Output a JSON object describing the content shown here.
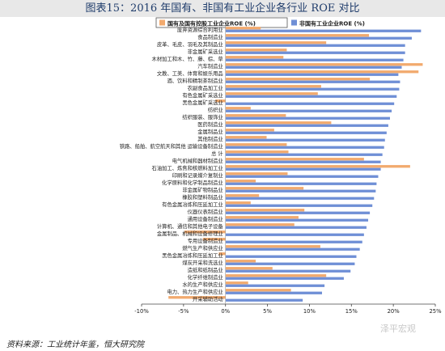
{
  "figure_title": "图表15：2016 年国有、非国有工业企业各行业 ROE 对比",
  "source": "资料来源：工业统计年鉴，恒大研究院",
  "watermark": "泽平宏观",
  "colors": {
    "state": "#f2aa6e",
    "nonstate": "#6f8fd6",
    "text": "#222222",
    "title_bg": "#e8e8e8"
  },
  "chart_data": {
    "type": "bar",
    "orientation": "horizontal",
    "title": "",
    "xlabel": "",
    "ylabel": "",
    "xlim": [
      -10,
      25
    ],
    "x_ticks": [
      "-10%",
      "-5%",
      "0%",
      "5%",
      "10%",
      "15%",
      "20%",
      "25%"
    ],
    "legend_position": "top",
    "categories": [
      "废弃资源综合利用业",
      "食品制造业",
      "皮革、毛皮、羽毛及其制品业",
      "非金属矿采选业",
      "木材加工和木、竹、藤、棕、草",
      "汽车制造业",
      "文教、工美、体育和娱乐用品",
      "酒、饮料和精制茶制造业",
      "农副食品加工业",
      "有色金属矿采选业",
      "黑色金属矿采选业",
      "纺织业",
      "纺织服装、服饰业",
      "医药制造业",
      "金属制品业",
      "其他制造业",
      "铁路、船舶、航空航天和其他 运输设备制造业",
      "总 计",
      "电气机械和器材制造业",
      "石油加工、炼焦和核燃料加工业",
      "印刷和记录媒介复制业",
      "化学原料和化学制品制造业",
      "非金属矿物制品业",
      "橡胶和塑料制品业",
      "有色金属冶炼和压延加工业",
      "仪器仪表制造业",
      "通用设备制造业",
      "计算机、通信和其他电子设备",
      "金属制品、机械和设备修理业",
      "专用设备制造业",
      "燃气生产和供应业",
      "黑色金属冶炼和压延加工业",
      "煤炭开采和洗选业",
      "造纸和纸制品业",
      "化学纤维制造业",
      "水的生产和供应业",
      "电力、热力生产和供应业",
      "开采辅助活动"
    ],
    "series": [
      {
        "name": "国有及国有控股工业企业ROE (%)",
        "values": [
          4.2,
          17.1,
          12.0,
          7.3,
          6.9,
          23.5,
          23.0,
          17.2,
          11.4,
          11.0,
          -1.2,
          3.0,
          7.2,
          12.6,
          5.8,
          4.9,
          7.3,
          7.5,
          16.5,
          22.0,
          7.4,
          3.6,
          9.3,
          4.0,
          3.0,
          9.4,
          8.7,
          8.2,
          -4.9,
          -2.7,
          11.3,
          -0.8,
          3.6,
          5.6,
          12.0,
          2.7,
          7.8,
          -6.8
        ]
      },
      {
        "name": "非国有工业企业ROE (%)",
        "values": [
          23.3,
          22.2,
          21.4,
          21.4,
          21.2,
          21.0,
          20.6,
          20.8,
          20.7,
          20.4,
          20.1,
          19.8,
          19.6,
          19.4,
          19.2,
          19.0,
          18.9,
          18.7,
          18.5,
          18.5,
          18.2,
          18.0,
          17.9,
          17.7,
          17.5,
          17.2,
          17.0,
          16.8,
          16.5,
          16.3,
          16.0,
          15.6,
          15.4,
          14.9,
          14.1,
          11.8,
          11.5,
          9.2
        ]
      }
    ]
  }
}
